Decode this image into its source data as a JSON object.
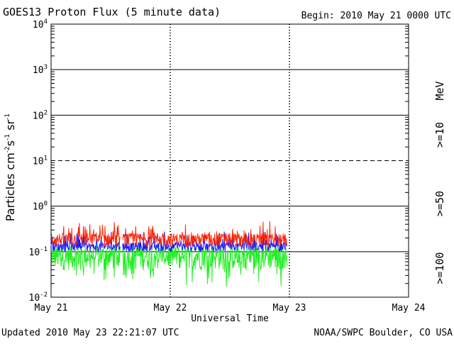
{
  "chart_data": {
    "type": "line",
    "title": "GOES13 Proton Flux (5 minute data)",
    "begin_label": "Begin: 2010 May 21 0000 UTC",
    "ylabel": {
      "base": "Particles cm",
      "e1": "-2",
      "mid": "s",
      "e2": "-1",
      "tail": "sr",
      "e3": "-1"
    },
    "xlabel": "Universal Time",
    "y_scale": "log",
    "ylim": [
      0.01,
      10000
    ],
    "y_ticks": [
      {
        "base": "10",
        "exp": "4"
      },
      {
        "base": "10",
        "exp": "3"
      },
      {
        "base": "10",
        "exp": "2"
      },
      {
        "base": "10",
        "exp": "1"
      },
      {
        "base": "10",
        "exp": "0"
      },
      {
        "base": "10",
        "exp": "-1"
      },
      {
        "base": "10",
        "exp": "-2"
      }
    ],
    "x_ticks": [
      "May 21",
      "May 22",
      "May 23",
      "May 24"
    ],
    "xlim_days": [
      0,
      3
    ],
    "data_end_day": 1.98,
    "gap_day": [
      0.58,
      0.6
    ],
    "unit_label": "MeV",
    "series": [
      {
        "name": ">=10",
        "color": "#ff2200",
        "baseline": 0.19,
        "spread": 0.33
      },
      {
        "name": ">=50",
        "color": "#1a1aff",
        "baseline": 0.13,
        "spread": 0.22
      },
      {
        "name": ">=100",
        "color": "#22ee22",
        "baseline": 0.085,
        "spread": 0.55
      }
    ]
  },
  "footer": {
    "updated": "Updated 2010 May 23 22:21:07 UTC",
    "credit": "NOAA/SWPC Boulder, CO USA"
  }
}
